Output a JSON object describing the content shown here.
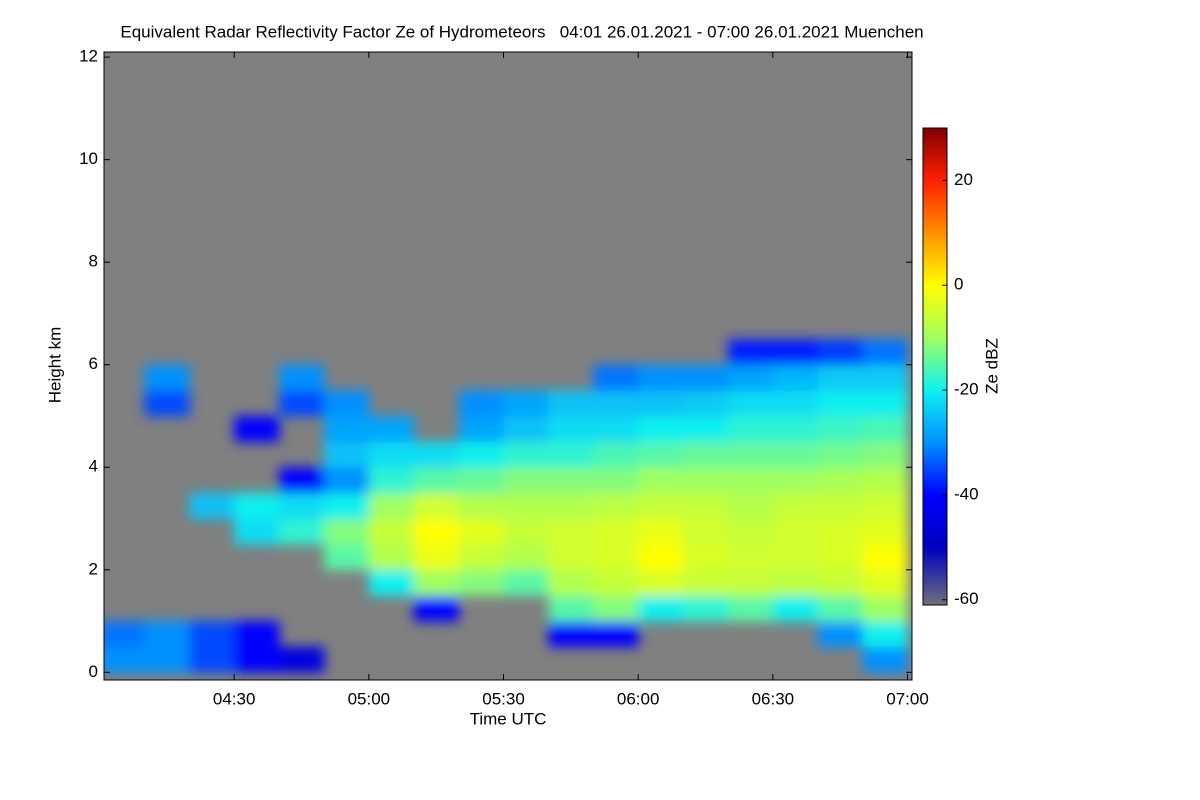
{
  "chart_data": {
    "type": "heatmap",
    "title": "Equivalent Radar Reflectivity Factor Ze of Hydrometeors   04:01 26.01.2021 - 07:00 26.01.2021 Muenchen",
    "x_label": "Time UTC",
    "y_label": "Height km",
    "colorbar_label": "Ze dBZ",
    "xlim": [
      241,
      421
    ],
    "xticks": [
      {
        "value": 270,
        "label": "04:30"
      },
      {
        "value": 300,
        "label": "05:00"
      },
      {
        "value": 330,
        "label": "05:30"
      },
      {
        "value": 360,
        "label": "06:00"
      },
      {
        "value": 390,
        "label": "06:30"
      },
      {
        "value": 420,
        "label": "07:00"
      }
    ],
    "ylim": [
      -0.15,
      12.1
    ],
    "yticks": [
      0,
      2,
      4,
      6,
      8,
      10,
      12
    ],
    "zlim": [
      -61,
      30
    ],
    "zticks": [
      -60,
      -40,
      -20,
      0,
      20
    ],
    "x": [
      245,
      255,
      265,
      275,
      285,
      295,
      305,
      315,
      325,
      335,
      345,
      355,
      365,
      375,
      385,
      395,
      405,
      415
    ],
    "y": [
      0.25,
      0.75,
      1.25,
      1.75,
      2.25,
      2.75,
      3.25,
      3.75,
      4.25,
      4.75,
      5.25,
      5.75,
      6.25
    ],
    "values": [
      [
        -30,
        -32,
        null,
        null,
        null,
        null,
        null,
        null,
        null,
        null,
        null,
        null,
        null
      ],
      [
        -30,
        -30,
        null,
        null,
        null,
        null,
        null,
        null,
        null,
        null,
        -35,
        -30,
        null
      ],
      [
        -35,
        -35,
        null,
        null,
        null,
        null,
        -25,
        null,
        null,
        null,
        null,
        null,
        null
      ],
      [
        -40,
        -40,
        null,
        null,
        null,
        -22,
        -20,
        null,
        null,
        -40,
        null,
        null,
        null
      ],
      [
        -45,
        null,
        null,
        null,
        null,
        -18,
        -22,
        -40,
        null,
        null,
        -35,
        -30,
        null
      ],
      [
        null,
        null,
        null,
        null,
        -15,
        -12,
        -20,
        -30,
        -25,
        -28,
        -30,
        null,
        null
      ],
      [
        null,
        null,
        null,
        -20,
        -8,
        -6,
        -10,
        -18,
        -22,
        -28,
        null,
        null,
        null
      ],
      [
        null,
        null,
        -40,
        -10,
        -2,
        0,
        -5,
        -15,
        -22,
        null,
        null,
        null,
        null
      ],
      [
        null,
        null,
        null,
        -12,
        -6,
        -3,
        -8,
        -14,
        -20,
        -28,
        -30,
        null,
        null
      ],
      [
        null,
        null,
        null,
        -15,
        -8,
        -6,
        -8,
        -12,
        -18,
        -25,
        -28,
        null,
        null
      ],
      [
        null,
        -40,
        -15,
        -8,
        -5,
        -5,
        -8,
        -12,
        -18,
        -22,
        -25,
        null,
        null
      ],
      [
        null,
        -40,
        -12,
        -6,
        -4,
        -4,
        -7,
        -12,
        -16,
        -22,
        -25,
        -32,
        null
      ],
      [
        null,
        null,
        -20,
        -4,
        0,
        -2,
        -6,
        -10,
        -15,
        -20,
        -25,
        -30,
        null
      ],
      [
        null,
        null,
        -18,
        -6,
        -4,
        -5,
        -6,
        -10,
        -14,
        -20,
        -24,
        -30,
        null
      ],
      [
        null,
        null,
        -15,
        -6,
        -5,
        -6,
        -8,
        -10,
        -14,
        -18,
        -22,
        -28,
        -38
      ],
      [
        null,
        null,
        -20,
        -7,
        -5,
        -5,
        -6,
        -10,
        -14,
        -18,
        -22,
        -26,
        -38
      ],
      [
        null,
        -30,
        -15,
        -6,
        -4,
        -4,
        -6,
        -9,
        -13,
        -17,
        -20,
        -24,
        -36
      ],
      [
        -30,
        -20,
        -10,
        -3,
        0,
        -3,
        -5,
        -8,
        -12,
        -16,
        -20,
        -24,
        -32
      ]
    ]
  }
}
